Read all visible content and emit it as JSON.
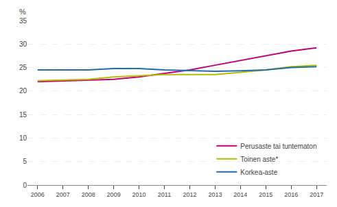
{
  "chart_data": {
    "type": "line",
    "ylabel": "%",
    "x": [
      2006,
      2007,
      2008,
      2009,
      2010,
      2011,
      2012,
      2013,
      2014,
      2015,
      2016,
      2017
    ],
    "series": [
      {
        "name": "Perusaste tai tuntematon",
        "color": "#c0007a",
        "values": [
          22.0,
          22.2,
          22.3,
          22.5,
          23.0,
          23.8,
          24.5,
          25.5,
          26.5,
          27.5,
          28.5,
          29.2
        ]
      },
      {
        "name": "Toinen aste*",
        "color": "#b5bd00",
        "values": [
          22.2,
          22.3,
          22.5,
          23.0,
          23.2,
          23.5,
          23.5,
          23.5,
          24.0,
          24.5,
          25.2,
          25.5
        ]
      },
      {
        "name": "Korkea-aste",
        "color": "#1f6cb0",
        "values": [
          24.5,
          24.5,
          24.5,
          24.8,
          24.8,
          24.5,
          24.3,
          24.2,
          24.3,
          24.5,
          25.0,
          25.2
        ]
      }
    ],
    "xlim": [
      2005.6,
      2017.4
    ],
    "xticks": [
      2006,
      2007,
      2008,
      2009,
      2010,
      2011,
      2012,
      2013,
      2014,
      2015,
      2016,
      2017
    ],
    "ylim": [
      0,
      35
    ],
    "yticks": [
      0,
      5,
      10,
      15,
      20,
      25,
      30,
      35
    ],
    "grid": "y",
    "legend": "lower right"
  }
}
